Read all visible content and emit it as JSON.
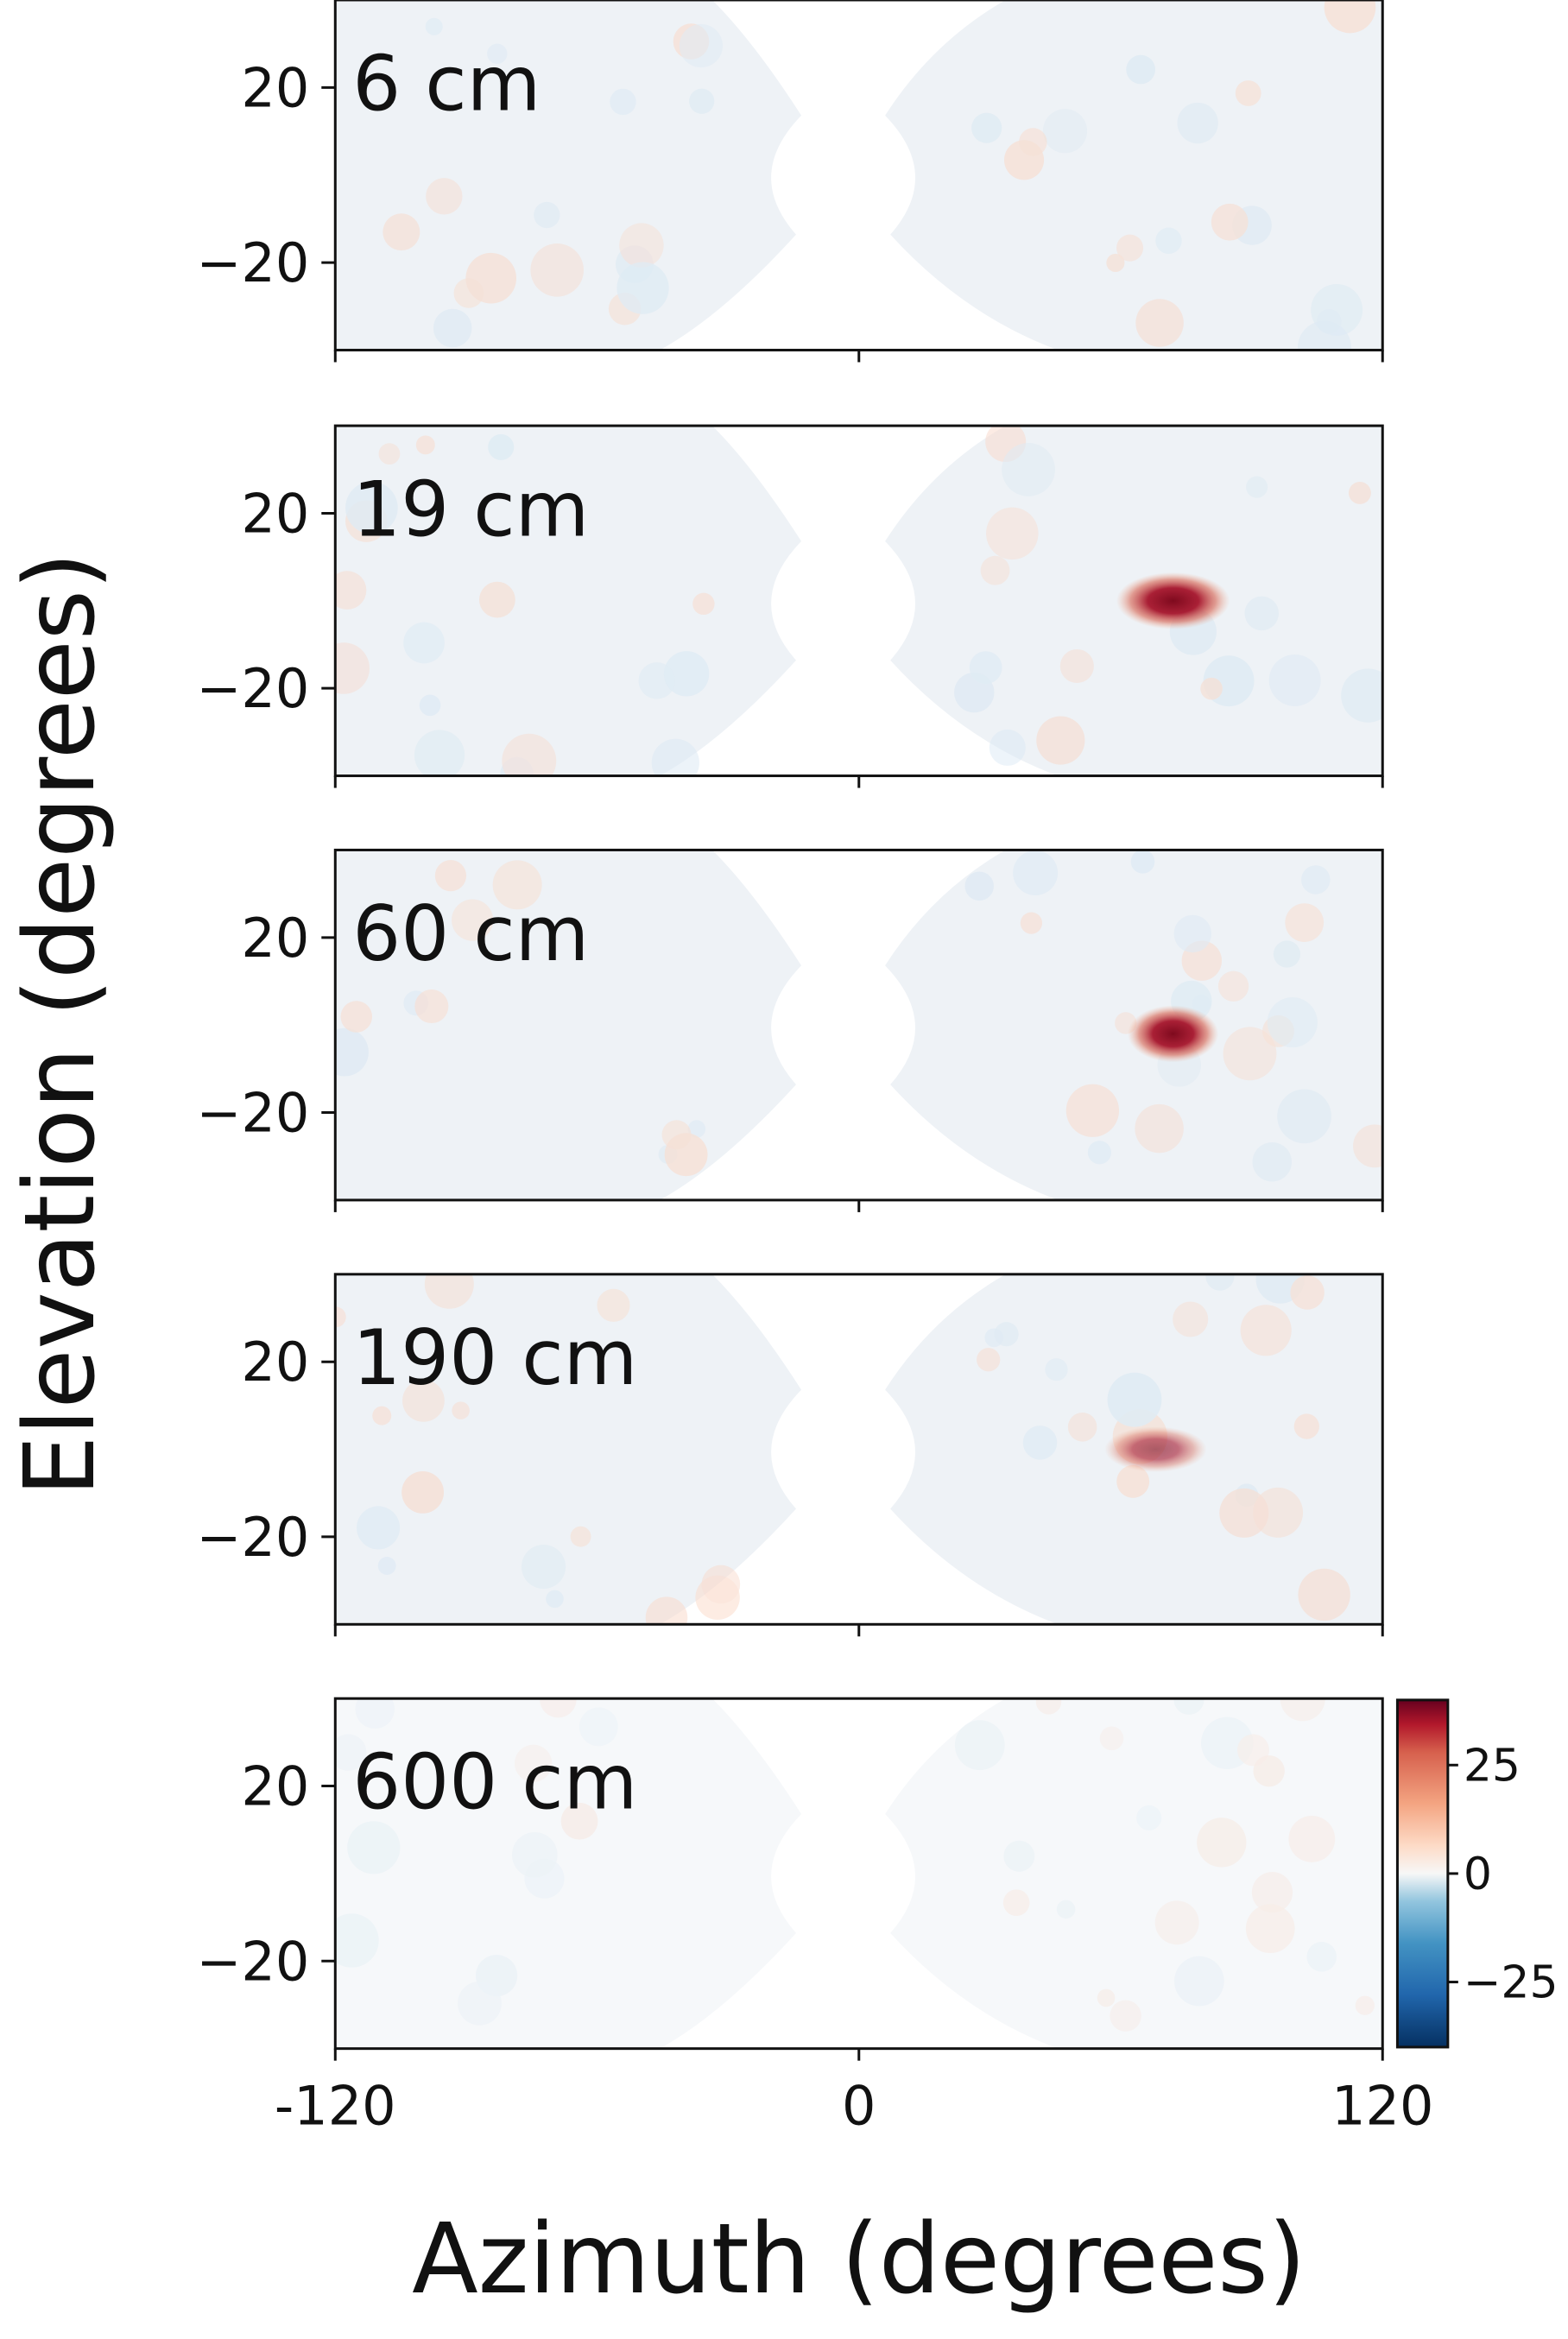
{
  "chart_data": {
    "type": "heatmap",
    "layout": "5 vertically stacked panels sharing x-axis",
    "xlabel": "Azimuth (degrees)",
    "ylabel": "Elevation (degrees)",
    "xlim": [
      -120,
      120
    ],
    "ylim": [
      -40,
      40
    ],
    "x_ticks": [
      -120,
      0,
      120
    ],
    "x_tick_labels": [
      "-120",
      "0",
      "120"
    ],
    "y_ticks": [
      20,
      -20
    ],
    "y_tick_labels": [
      "20",
      "−20"
    ],
    "masked_region": "central region around azimuth 0 (approx. -15 to 15 deg) has no data; left/right data regions have curved outer edges",
    "colormap": "RdBu_r (diverging, blue negative, red positive)",
    "colorbar": {
      "range": [
        -40,
        40
      ],
      "ticks": [
        25,
        0,
        -25
      ],
      "tick_labels": [
        "25",
        "0",
        "−25"
      ],
      "colors": {
        "high": "#67001f",
        "mid_high": "#f4a582",
        "zero": "#f7f7f7",
        "mid_low": "#92c5de",
        "low": "#053061"
      }
    },
    "panels": [
      {
        "label": "6 cm",
        "peak": null,
        "background_noise": "faint mixed red/blue, small speck near azimuth 18, elevation 10"
      },
      {
        "label": "19 cm",
        "peak": {
          "azimuth": 72,
          "elevation": 0,
          "value": 35,
          "size_deg": [
            10,
            5
          ]
        }
      },
      {
        "label": "60 cm",
        "peak": {
          "azimuth": 72,
          "elevation": -2,
          "value": 40,
          "size_deg": [
            8,
            5
          ]
        }
      },
      {
        "label": "190 cm",
        "peak": {
          "azimuth": 68,
          "elevation": 0,
          "value": 15,
          "size_deg": [
            9,
            4
          ]
        }
      },
      {
        "label": "600 cm",
        "peak": null,
        "background_noise": "very faint"
      }
    ]
  }
}
